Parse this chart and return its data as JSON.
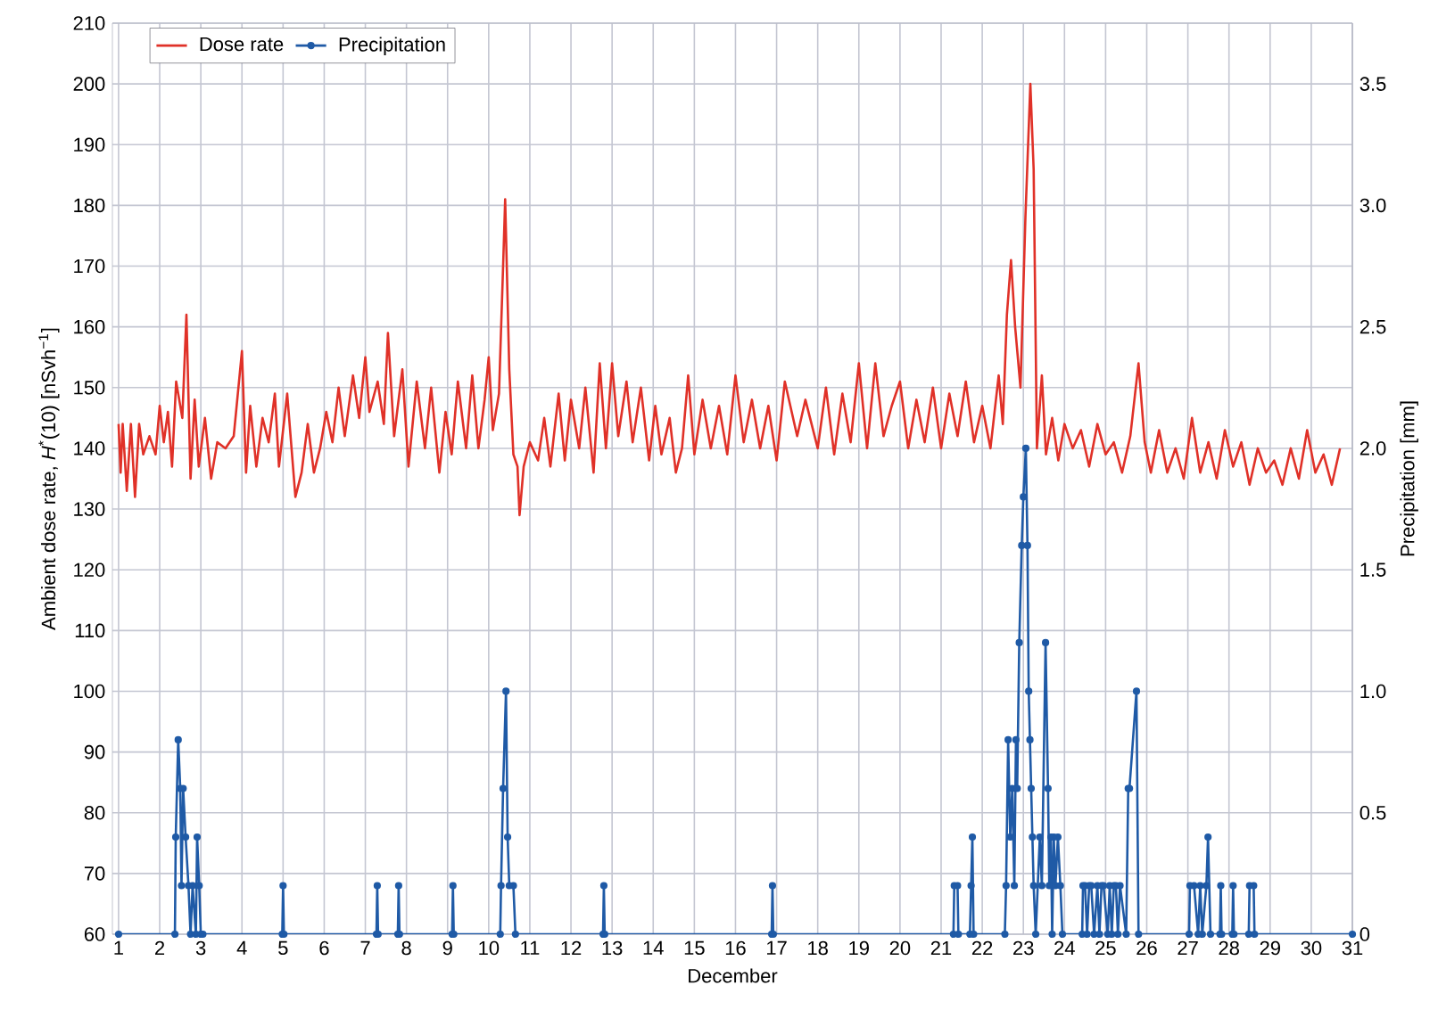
{
  "chart_data": {
    "type": "line",
    "xlabel": "December",
    "ylabel": "Ambient dose rate, *H*$^{*}$(10) [nSvh$^{−1}$]",
    "y2label": "Precipitation [mm]",
    "xlim": [
      0.85,
      31
    ],
    "xticks": [
      1,
      2,
      3,
      4,
      5,
      6,
      7,
      8,
      9,
      10,
      11,
      12,
      13,
      14,
      15,
      16,
      17,
      18,
      19,
      20,
      21,
      22,
      23,
      24,
      25,
      26,
      27,
      28,
      29,
      30,
      31
    ],
    "ylim": [
      60,
      210
    ],
    "yticks": [
      60,
      70,
      80,
      90,
      100,
      110,
      120,
      130,
      140,
      150,
      160,
      170,
      180,
      190,
      200,
      210
    ],
    "y2lim": [
      0,
      3.75
    ],
    "y2ticks": [
      {
        "value": 0,
        "label": "0"
      },
      {
        "value": 0.5,
        "label": "0.5"
      },
      {
        "value": 1,
        "label": "1.0"
      },
      {
        "value": 1.5,
        "label": "1.5"
      },
      {
        "value": 2,
        "label": "2.0"
      },
      {
        "value": 2.5,
        "label": "2.5"
      },
      {
        "value": 3,
        "label": "3.0"
      },
      {
        "value": 3.5,
        "label": "3.5"
      }
    ],
    "grid": true,
    "legend": "top left",
    "series": [
      {
        "name": "Dose rate",
        "color": "#e03128",
        "marker": "none",
        "line_style": "solid",
        "x": [
          1.0,
          1.05,
          1.1,
          1.2,
          1.3,
          1.4,
          1.5,
          1.6,
          1.75,
          1.9,
          2.0,
          2.1,
          2.2,
          2.3,
          2.4,
          2.55,
          2.65,
          2.75,
          2.85,
          2.95,
          3.1,
          3.25,
          3.4,
          3.6,
          3.8,
          4.0,
          4.1,
          4.2,
          4.35,
          4.5,
          4.65,
          4.8,
          4.9,
          5.1,
          5.3,
          5.45,
          5.6,
          5.75,
          5.9,
          6.05,
          6.2,
          6.35,
          6.5,
          6.7,
          6.85,
          7.0,
          7.1,
          7.3,
          7.45,
          7.55,
          7.7,
          7.9,
          8.05,
          8.25,
          8.45,
          8.6,
          8.8,
          8.95,
          9.1,
          9.25,
          9.45,
          9.6,
          9.75,
          9.9,
          10.0,
          10.1,
          10.25,
          10.35,
          10.4,
          10.5,
          10.6,
          10.7,
          10.75,
          10.85,
          11.0,
          11.2,
          11.35,
          11.5,
          11.7,
          11.85,
          12.0,
          12.2,
          12.35,
          12.55,
          12.7,
          12.85,
          13.0,
          13.15,
          13.35,
          13.5,
          13.7,
          13.9,
          14.05,
          14.2,
          14.4,
          14.55,
          14.7,
          14.85,
          15.0,
          15.2,
          15.4,
          15.6,
          15.8,
          16.0,
          16.2,
          16.4,
          16.6,
          16.8,
          17.0,
          17.2,
          17.5,
          17.7,
          18.0,
          18.2,
          18.4,
          18.6,
          18.8,
          19.0,
          19.2,
          19.4,
          19.6,
          19.8,
          20.0,
          20.2,
          20.4,
          20.6,
          20.8,
          21.0,
          21.2,
          21.4,
          21.6,
          21.8,
          22.0,
          22.2,
          22.4,
          22.5,
          22.6,
          22.7,
          22.8,
          22.93,
          23.05,
          23.17,
          23.25,
          23.33,
          23.45,
          23.55,
          23.7,
          23.85,
          24.0,
          24.2,
          24.4,
          24.6,
          24.8,
          25.0,
          25.2,
          25.4,
          25.6,
          25.8,
          25.95,
          26.1,
          26.3,
          26.5,
          26.7,
          26.9,
          27.1,
          27.3,
          27.5,
          27.7,
          27.9,
          28.1,
          28.3,
          28.5,
          28.7,
          28.9,
          29.1,
          29.3,
          29.5,
          29.7,
          29.9,
          30.1,
          30.3,
          30.5,
          30.7
        ],
        "values": [
          144,
          136,
          144,
          133,
          144,
          132,
          144,
          139,
          142,
          139,
          147,
          141,
          146,
          137,
          151,
          145,
          162,
          135,
          148,
          137,
          145,
          135,
          141,
          140,
          142,
          156,
          136,
          147,
          137,
          145,
          141,
          149,
          137,
          149,
          132,
          136,
          144,
          136,
          140,
          146,
          141,
          150,
          142,
          152,
          145,
          155,
          146,
          151,
          144,
          159,
          142,
          153,
          137,
          151,
          140,
          150,
          136,
          146,
          139,
          151,
          140,
          152,
          140,
          148,
          155,
          143,
          149,
          170,
          181,
          153,
          139,
          137,
          129,
          137,
          141,
          138,
          145,
          137,
          149,
          138,
          148,
          140,
          150,
          136,
          154,
          140,
          154,
          142,
          151,
          141,
          150,
          138,
          147,
          139,
          145,
          136,
          140,
          152,
          139,
          148,
          140,
          147,
          139,
          152,
          141,
          148,
          140,
          147,
          138,
          151,
          142,
          148,
          140,
          150,
          139,
          149,
          141,
          154,
          140,
          154,
          142,
          147,
          151,
          140,
          148,
          141,
          150,
          140,
          149,
          142,
          151,
          141,
          147,
          140,
          152,
          144,
          162,
          171,
          160,
          150,
          178,
          200,
          186,
          140,
          152,
          139,
          145,
          138,
          144,
          140,
          143,
          137,
          144,
          139,
          141,
          136,
          142,
          154,
          141,
          136,
          143,
          136,
          140,
          135,
          145,
          136,
          141,
          135,
          143,
          137,
          141,
          134,
          140,
          136,
          138,
          134,
          140,
          135,
          143,
          136,
          139,
          134,
          140
        ]
      },
      {
        "name": "Precipitation",
        "color": "#1f5aa6",
        "axis": "y2",
        "marker": "circle",
        "line_style": "solid",
        "x": [
          1.0,
          2.37,
          2.39,
          2.45,
          2.5,
          2.53,
          2.57,
          2.63,
          2.7,
          2.75,
          2.8,
          2.88,
          2.91,
          2.96,
          3.0,
          3.05,
          4.98,
          5.0,
          5.02,
          7.27,
          7.29,
          7.31,
          7.79,
          7.81,
          7.83,
          9.11,
          9.13,
          9.15,
          10.28,
          10.3,
          10.35,
          10.42,
          10.46,
          10.5,
          10.6,
          10.65,
          12.78,
          12.8,
          12.82,
          16.88,
          16.9,
          16.92,
          21.3,
          21.32,
          21.4,
          21.42,
          21.7,
          21.73,
          21.76,
          21.79,
          22.55,
          22.58,
          22.63,
          22.68,
          22.73,
          22.78,
          22.82,
          22.85,
          22.9,
          22.96,
          23.0,
          23.06,
          23.1,
          23.13,
          23.16,
          23.19,
          23.22,
          23.25,
          23.3,
          23.4,
          23.45,
          23.54,
          23.6,
          23.63,
          23.67,
          23.7,
          23.74,
          23.78,
          23.84,
          23.9,
          23.95,
          24.43,
          24.45,
          24.5,
          24.55,
          24.6,
          24.65,
          24.72,
          24.8,
          24.85,
          24.9,
          24.95,
          25.05,
          25.1,
          25.15,
          25.2,
          25.25,
          25.3,
          25.35,
          25.5,
          25.55,
          25.58,
          25.75,
          25.8,
          27.03,
          27.05,
          27.15,
          27.25,
          27.3,
          27.35,
          27.45,
          27.49,
          27.55,
          27.78,
          27.8,
          27.82,
          28.08,
          28.1,
          28.12,
          28.48,
          28.5,
          28.6,
          28.62,
          31.0
        ],
        "values": [
          0,
          0,
          0.4,
          0.8,
          0.6,
          0.2,
          0.6,
          0.4,
          0.2,
          0,
          0.2,
          0,
          0.4,
          0.2,
          0,
          0,
          0,
          0.2,
          0,
          0,
          0.2,
          0,
          0,
          0.2,
          0,
          0,
          0.2,
          0,
          0,
          0.2,
          0.6,
          1.0,
          0.4,
          0.2,
          0.2,
          0,
          0,
          0.2,
          0,
          0,
          0.2,
          0,
          0,
          0.2,
          0.2,
          0,
          0,
          0.2,
          0.4,
          0,
          0,
          0.2,
          0.8,
          0.4,
          0.6,
          0.2,
          0.8,
          0.6,
          1.2,
          1.6,
          1.8,
          2.0,
          1.6,
          1.0,
          0.8,
          0.6,
          0.4,
          0.2,
          0,
          0.4,
          0.2,
          1.2,
          0.6,
          0.2,
          0.4,
          0,
          0.4,
          0.2,
          0.4,
          0.2,
          0,
          0,
          0.2,
          0.2,
          0,
          0.2,
          0.2,
          0,
          0.2,
          0,
          0.2,
          0.2,
          0,
          0.2,
          0,
          0.2,
          0.2,
          0,
          0.2,
          0,
          0.6,
          0.6,
          1.0,
          0,
          0,
          0.2,
          0.2,
          0,
          0.2,
          0,
          0.2,
          0.4,
          0,
          0,
          0.2,
          0,
          0,
          0.2,
          0,
          0,
          0.2,
          0.2,
          0,
          0
        ]
      }
    ]
  }
}
